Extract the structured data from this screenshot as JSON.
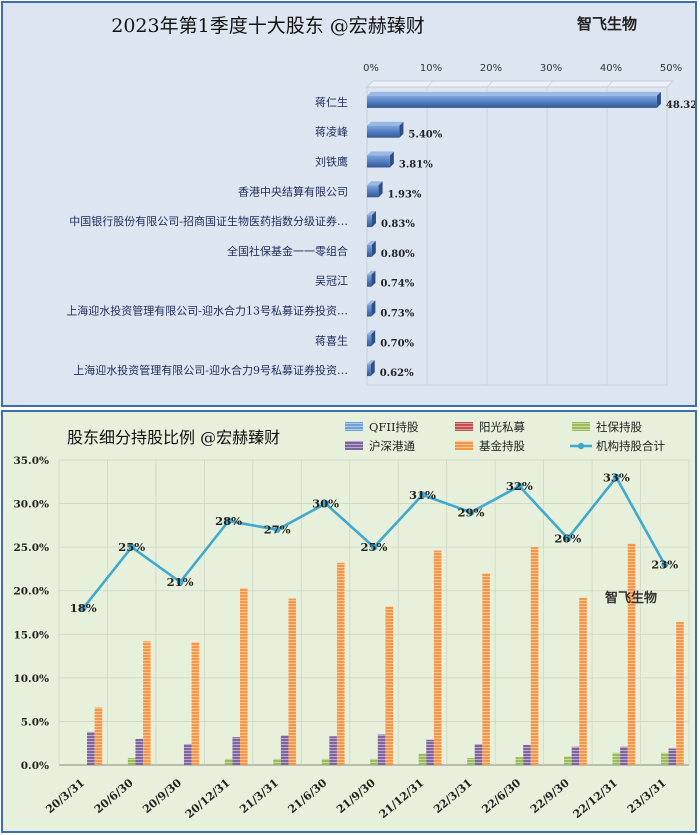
{
  "top": {
    "title": "2023年第1季度十大股东 @宏赫臻财",
    "brand": "智飞生物",
    "bar_color": "#4f79c0"
  },
  "bottom": {
    "title": "股东细分持股比例 @宏赫臻财",
    "brand": "智飞生物",
    "line_color": "#3fa9cf"
  },
  "chart_data": [
    {
      "type": "bar",
      "orientation": "horizontal",
      "title": "2023年第1季度十大股东 @宏赫臻财",
      "categories": [
        "蒋仁生",
        "蒋凌峰",
        "刘铁鹰",
        "香港中央结算有限公司",
        "中国银行股份有限公司-招商国证生物医药指数分级证券…",
        "全国社保基金一一零组合",
        "吴冠江",
        "上海迎水投资管理有限公司-迎水合力13号私募证券投资…",
        "蒋喜生",
        "上海迎水投资管理有限公司-迎水合力9号私募证券投资…"
      ],
      "values": [
        48.32,
        5.4,
        3.81,
        1.93,
        0.83,
        0.8,
        0.74,
        0.73,
        0.7,
        0.62
      ],
      "value_labels": [
        "48.32%",
        "5.40%",
        "3.81%",
        "1.93%",
        "0.83%",
        "0.80%",
        "0.74%",
        "0.73%",
        "0.70%",
        "0.62%"
      ],
      "xlim": [
        0,
        50
      ],
      "xticks": [
        0,
        10,
        20,
        30,
        40,
        50
      ],
      "xtick_labels": [
        "0%",
        "10%",
        "20%",
        "30%",
        "40%",
        "50%"
      ],
      "x_axis_position": "top",
      "grid": true
    },
    {
      "type": "bar+line",
      "title": "股东细分持股比例 @宏赫臻财",
      "categories": [
        "20/3/31",
        "20/6/30",
        "20/9/30",
        "20/12/31",
        "21/3/31",
        "21/6/30",
        "21/9/30",
        "21/12/31",
        "22/3/31",
        "22/6/30",
        "22/9/30",
        "22/12/31",
        "23/3/31"
      ],
      "ylim": [
        0,
        35
      ],
      "yticks": [
        0,
        5,
        10,
        15,
        20,
        25,
        30,
        35
      ],
      "ytick_labels": [
        "0.0%",
        "5.0%",
        "10.0%",
        "15.0%",
        "20.0%",
        "25.0%",
        "30.0%",
        "35.0%"
      ],
      "legend_position": "top-right",
      "grid": true,
      "series": [
        {
          "name": "QFII持股",
          "kind": "bar",
          "color": "#6fa0d8",
          "values": [
            0,
            0,
            0,
            0,
            0,
            0,
            0,
            0,
            0,
            0,
            0,
            0,
            0
          ]
        },
        {
          "name": "阳光私募",
          "kind": "bar",
          "color": "#c0504d",
          "values": [
            0,
            0,
            0,
            0,
            0,
            0,
            0,
            0,
            0,
            0,
            0,
            0,
            0
          ]
        },
        {
          "name": "社保持股",
          "kind": "bar",
          "color": "#9bbb59",
          "values": [
            0.0,
            0.8,
            0.0,
            0.7,
            0.7,
            0.7,
            0.7,
            1.3,
            0.8,
            0.9,
            1.0,
            1.4,
            1.4
          ]
        },
        {
          "name": "沪深港通",
          "kind": "bar",
          "color": "#8064a2",
          "values": [
            3.8,
            3.0,
            2.4,
            3.2,
            3.4,
            3.3,
            3.5,
            2.9,
            2.4,
            2.3,
            2.1,
            2.1,
            1.9
          ]
        },
        {
          "name": "基金持股",
          "kind": "bar",
          "color": "#f79646",
          "values": [
            6.6,
            14.2,
            14.1,
            20.3,
            19.1,
            23.2,
            18.2,
            24.6,
            22.0,
            25.0,
            19.2,
            25.4,
            16.4
          ]
        },
        {
          "name": "机构持股合计",
          "kind": "line",
          "color": "#3fa9cf",
          "values": [
            18,
            25,
            21,
            28,
            27,
            30,
            25,
            31,
            29,
            32,
            26,
            33,
            23
          ],
          "labels": [
            "18%",
            "25%",
            "21%",
            "28%",
            "27%",
            "30%",
            "25%",
            "31%",
            "29%",
            "32%",
            "26%",
            "33%",
            "23%"
          ]
        }
      ]
    }
  ]
}
